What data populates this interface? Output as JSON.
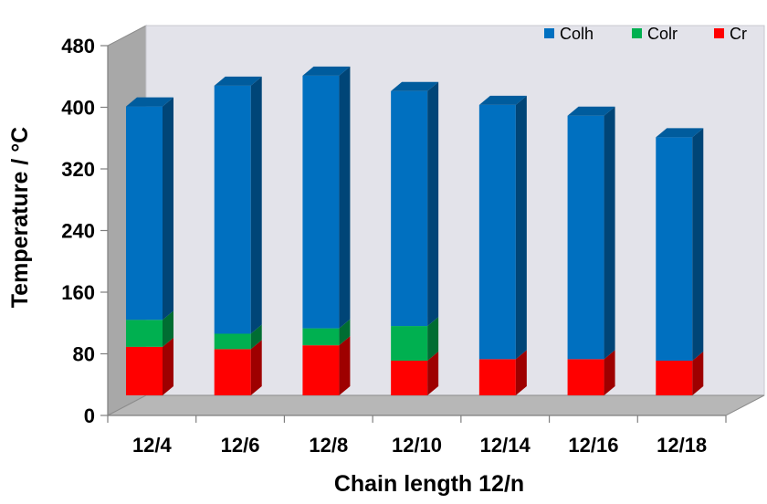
{
  "chart_data": {
    "type": "bar",
    "stacked": true,
    "three_d": true,
    "categories": [
      "12/4",
      "12/6",
      "12/8",
      "12/10",
      "12/14",
      "12/16",
      "12/18"
    ],
    "series": [
      {
        "name": "Cr",
        "color": "#ff0000",
        "values": [
          63,
          60,
          65,
          45,
          47,
          47,
          45
        ]
      },
      {
        "name": "Colr",
        "color": "#00b050",
        "values": [
          35,
          20,
          22,
          45,
          0,
          0,
          0
        ]
      },
      {
        "name": "Colh",
        "color": "#0070c0",
        "values": [
          277,
          322,
          328,
          305,
          330,
          316,
          290
        ]
      }
    ],
    "title": "",
    "xlabel": "Chain length 12/n",
    "ylabel": "Temperature  / °C",
    "ylim": [
      0,
      480
    ],
    "yticks": [
      0,
      80,
      160,
      240,
      320,
      400,
      480
    ],
    "legend": {
      "position": "top-right",
      "order": [
        "Colh",
        "Colr",
        "Cr"
      ]
    },
    "grid": false,
    "colors": {
      "back_wall": "#e3e3ea",
      "side_wall": "#a8a8a8",
      "floor": "#b7b7b7"
    }
  }
}
